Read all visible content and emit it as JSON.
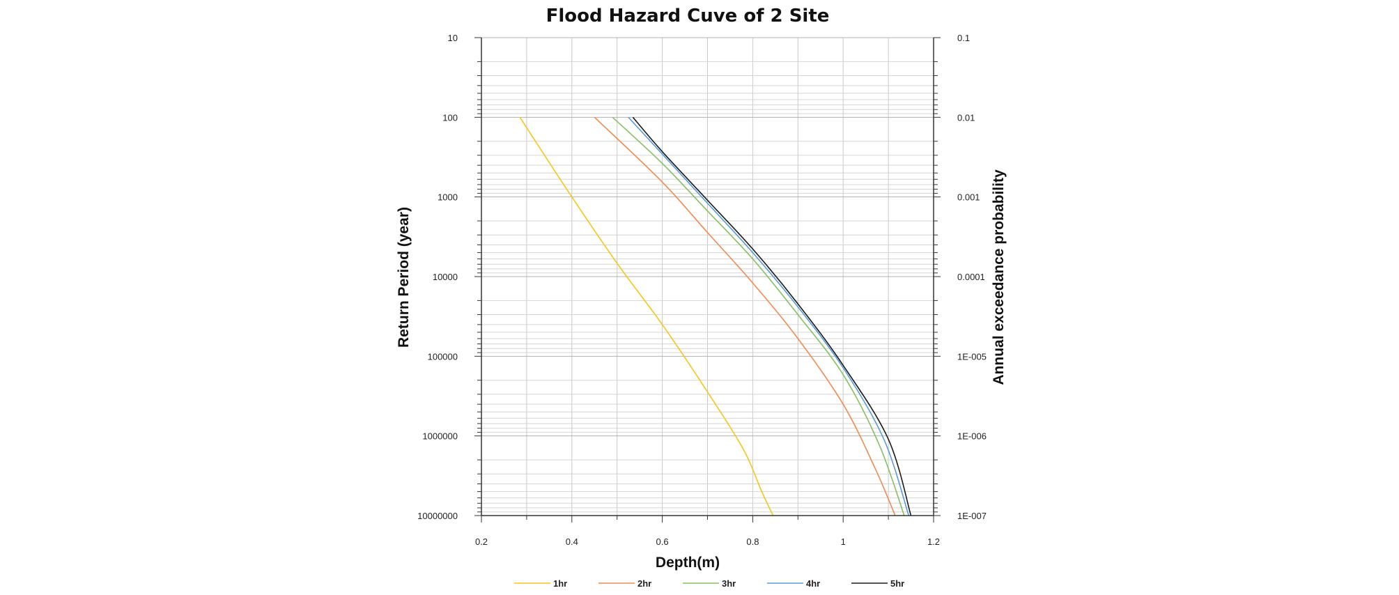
{
  "chart_data": {
    "type": "line",
    "title": "Flood Hazard Cuve of 2 Site",
    "xlabel": "Depth(m)",
    "ylabel": "Return Period (year)",
    "y2label": "Annual exceedance probability",
    "xlim": [
      0.2,
      1.2
    ],
    "ylim": [
      10,
      10000000
    ],
    "y2lim": [
      0.1,
      1e-07
    ],
    "yscale": "log",
    "y_inverted": true,
    "grid": true,
    "legend_position": "bottom",
    "x_ticks": [
      "0.2",
      "0.4",
      "0.6",
      "0.8",
      "1",
      "1.2"
    ],
    "y_ticks": [
      "10",
      "100",
      "1000",
      "10000",
      "100000",
      "1000000",
      "10000000"
    ],
    "y2_ticks": [
      "0.1",
      "0.01",
      "0.001",
      "0.0001",
      "1E-005",
      "1E-006",
      "1E-007"
    ],
    "series": [
      {
        "name": "1hr",
        "color": "#f5c518",
        "x": [
          0.285,
          0.4,
          0.5,
          0.6,
          0.7,
          0.78,
          0.82,
          0.845
        ],
        "y": [
          100,
          1000,
          6800,
          40000,
          280000,
          1500000,
          5000000,
          10000000
        ]
      },
      {
        "name": "2hr",
        "color": "#ee8a52",
        "x": [
          0.45,
          0.6,
          0.7,
          0.8,
          0.9,
          1.0,
          1.07,
          1.115
        ],
        "y": [
          100,
          650,
          2800,
          12000,
          60000,
          400000,
          2500000,
          10000000
        ]
      },
      {
        "name": "3hr",
        "color": "#86bf61",
        "x": [
          0.49,
          0.6,
          0.7,
          0.8,
          0.9,
          1.0,
          1.08,
          1.135
        ],
        "y": [
          100,
          380,
          1500,
          6000,
          30000,
          170000,
          1300000,
          10000000
        ]
      },
      {
        "name": "4hr",
        "color": "#5b9bd5",
        "x": [
          0.525,
          0.6,
          0.7,
          0.8,
          0.9,
          1.0,
          1.09,
          1.145
        ],
        "y": [
          100,
          290,
          1200,
          5000,
          24000,
          140000,
          1100000,
          10000000
        ]
      },
      {
        "name": "5hr",
        "color": "#1a1a1a",
        "x": [
          0.535,
          0.6,
          0.7,
          0.8,
          0.9,
          1.0,
          1.1,
          1.15
        ],
        "y": [
          100,
          270,
          1100,
          4500,
          22000,
          130000,
          1100000,
          10000000
        ]
      }
    ]
  }
}
